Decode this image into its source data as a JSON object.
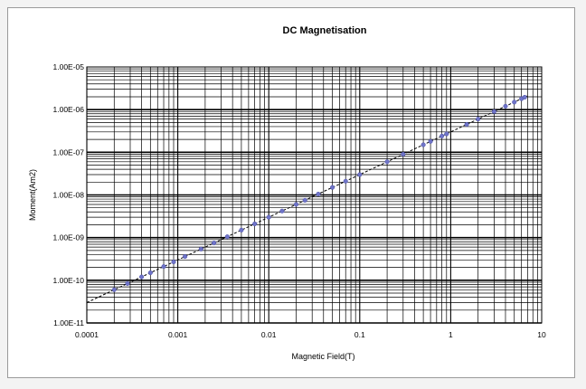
{
  "chart_data": {
    "type": "scatter",
    "title": "DC Magnetisation",
    "xlabel": "Magnetic Field(T)",
    "ylabel": "Moment(Am2)",
    "x_scale": "log",
    "y_scale": "log",
    "xlim": [
      0.0001,
      10
    ],
    "ylim": [
      1e-11,
      1e-05
    ],
    "x_ticks": [
      {
        "value": 0.0001,
        "label": "0.0001"
      },
      {
        "value": 0.001,
        "label": "0.001"
      },
      {
        "value": 0.01,
        "label": "0.01"
      },
      {
        "value": 0.1,
        "label": "0.1"
      },
      {
        "value": 1,
        "label": "1"
      },
      {
        "value": 10,
        "label": "10"
      }
    ],
    "y_ticks": [
      {
        "value": 1e-11,
        "label": "1.00E-11"
      },
      {
        "value": 1e-10,
        "label": "1.00E-10"
      },
      {
        "value": 1e-09,
        "label": "1.00E-09"
      },
      {
        "value": 1e-08,
        "label": "1.00E-08"
      },
      {
        "value": 1e-07,
        "label": "1.00E-07"
      },
      {
        "value": 1e-06,
        "label": "1.00E-06"
      },
      {
        "value": 1e-05,
        "label": "1.00E-05"
      }
    ],
    "grid": true,
    "legend": "none",
    "series": [
      {
        "marker_color": "#6f74c8",
        "line_color": "#000000",
        "line_style": "dashed",
        "points": [
          {
            "x": 0.0002,
            "y": 6e-11
          },
          {
            "x": 0.00028,
            "y": 8.4e-11
          },
          {
            "x": 0.0004,
            "y": 1.2e-10
          },
          {
            "x": 0.0005,
            "y": 1.5e-10
          },
          {
            "x": 0.0007,
            "y": 2.1e-10
          },
          {
            "x": 0.0009,
            "y": 2.7e-10
          },
          {
            "x": 0.0012,
            "y": 3.6e-10
          },
          {
            "x": 0.0018,
            "y": 5.4e-10
          },
          {
            "x": 0.0025,
            "y": 7.5e-10
          },
          {
            "x": 0.0035,
            "y": 1.05e-09
          },
          {
            "x": 0.005,
            "y": 1.5e-09
          },
          {
            "x": 0.007,
            "y": 2.1e-09
          },
          {
            "x": 0.01,
            "y": 3e-09
          },
          {
            "x": 0.014,
            "y": 4.2e-09
          },
          {
            "x": 0.02,
            "y": 6e-09
          },
          {
            "x": 0.025,
            "y": 7.5e-09
          },
          {
            "x": 0.035,
            "y": 1.05e-08
          },
          {
            "x": 0.05,
            "y": 1.5e-08
          },
          {
            "x": 0.07,
            "y": 2.1e-08
          },
          {
            "x": 0.1,
            "y": 3e-08
          },
          {
            "x": 0.2,
            "y": 6e-08
          },
          {
            "x": 0.3,
            "y": 9e-08
          },
          {
            "x": 0.5,
            "y": 1.5e-07
          },
          {
            "x": 0.6,
            "y": 1.8e-07
          },
          {
            "x": 0.8,
            "y": 2.4e-07
          },
          {
            "x": 0.9,
            "y": 2.7e-07
          },
          {
            "x": 1.5,
            "y": 4.5e-07
          },
          {
            "x": 2,
            "y": 6e-07
          },
          {
            "x": 3,
            "y": 9e-07
          },
          {
            "x": 4,
            "y": 1.2e-06
          },
          {
            "x": 5,
            "y": 1.5e-06
          },
          {
            "x": 6,
            "y": 1.8e-06
          },
          {
            "x": 6.5,
            "y": 1.95e-06
          }
        ],
        "fit_line": {
          "x": [
            0.0001,
            7
          ],
          "y": [
            3e-11,
            2.1e-06
          ]
        }
      }
    ]
  }
}
